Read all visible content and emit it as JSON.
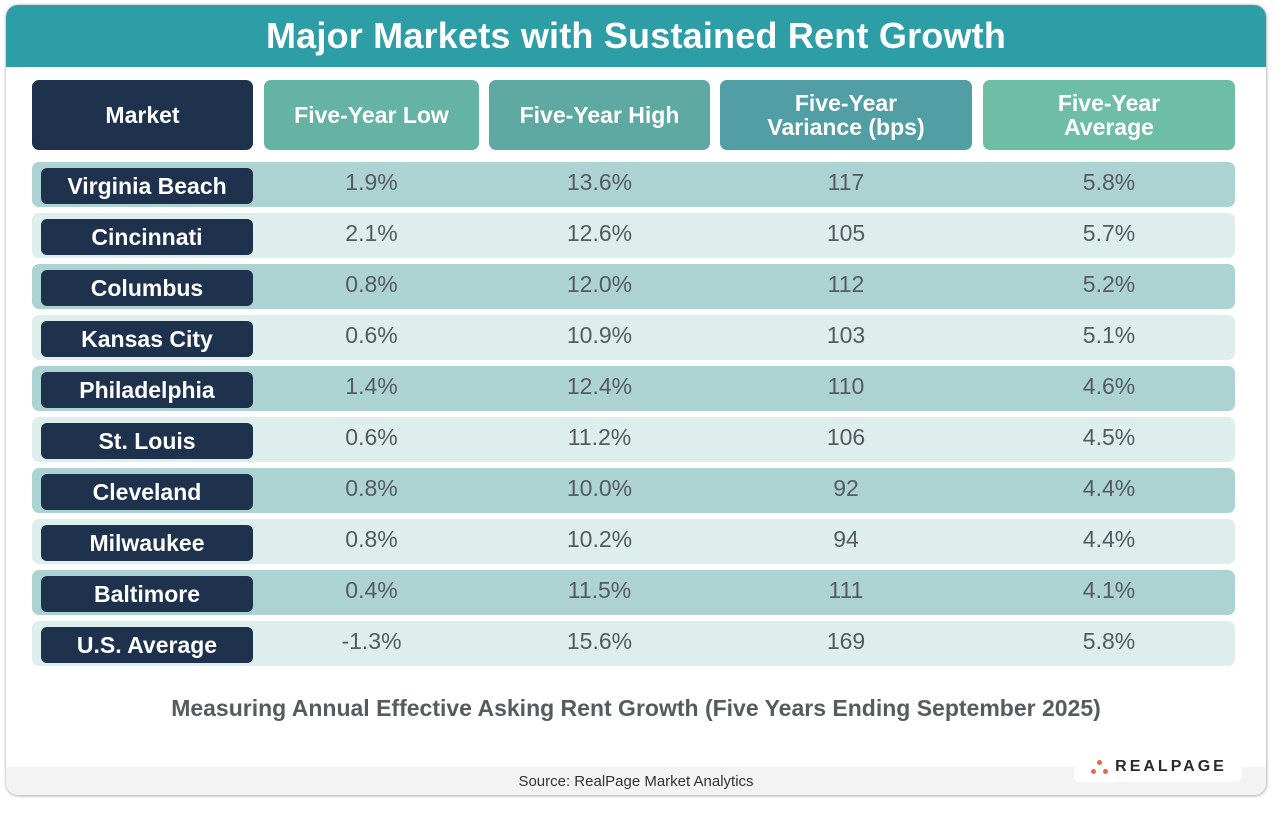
{
  "title": "Major Markets with Sustained Rent Growth",
  "headers": {
    "market": "Market",
    "low": "Five-Year Low",
    "high": "Five-Year High",
    "variance_line1": "Five-Year",
    "variance_line2": "Variance (bps)",
    "average_line1": "Five-Year",
    "average_line2": "Average"
  },
  "rows": [
    {
      "market": "Virginia Beach",
      "low": "1.9%",
      "high": "13.6%",
      "variance": "117",
      "average": "5.8%"
    },
    {
      "market": "Cincinnati",
      "low": "2.1%",
      "high": "12.6%",
      "variance": "105",
      "average": "5.7%"
    },
    {
      "market": "Columbus",
      "low": "0.8%",
      "high": "12.0%",
      "variance": "112",
      "average": "5.2%"
    },
    {
      "market": "Kansas City",
      "low": "0.6%",
      "high": "10.9%",
      "variance": "103",
      "average": "5.1%"
    },
    {
      "market": "Philadelphia",
      "low": "1.4%",
      "high": "12.4%",
      "variance": "110",
      "average": "4.6%"
    },
    {
      "market": "St. Louis",
      "low": "0.6%",
      "high": "11.2%",
      "variance": "106",
      "average": "4.5%"
    },
    {
      "market": "Cleveland",
      "low": "0.8%",
      "high": "10.0%",
      "variance": "92",
      "average": "4.4%"
    },
    {
      "market": "Milwaukee",
      "low": "0.8%",
      "high": "10.2%",
      "variance": "94",
      "average": "4.4%"
    },
    {
      "market": "Baltimore",
      "low": "0.4%",
      "high": "11.5%",
      "variance": "111",
      "average": "4.1%"
    },
    {
      "market": "U.S. Average",
      "low": "-1.3%",
      "high": "15.6%",
      "variance": "169",
      "average": "5.8%"
    }
  ],
  "subtitle": "Measuring Annual Effective Asking Rent Growth (Five Years Ending September 2025)",
  "source": "Source: RealPage Market Analytics",
  "logo": {
    "icon": "realpage-dots-icon",
    "text": "REALPAGE",
    "dot_color": "#e8674a"
  },
  "colors": {
    "title_bar": "#2e9ea6",
    "navy": "#1e314d",
    "row_dark": "#acd3d2",
    "row_light": "#deeeed"
  },
  "chart_data": {
    "type": "table",
    "title": "Major Markets with Sustained Rent Growth",
    "subtitle": "Measuring Annual Effective Asking Rent Growth (Five Years Ending September 2025)",
    "columns": [
      "Market",
      "Five-Year Low",
      "Five-Year High",
      "Five-Year Variance (bps)",
      "Five-Year Average"
    ],
    "rows": [
      [
        "Virginia Beach",
        1.9,
        13.6,
        117,
        5.8
      ],
      [
        "Cincinnati",
        2.1,
        12.6,
        105,
        5.7
      ],
      [
        "Columbus",
        0.8,
        12.0,
        112,
        5.2
      ],
      [
        "Kansas City",
        0.6,
        10.9,
        103,
        5.1
      ],
      [
        "Philadelphia",
        1.4,
        12.4,
        110,
        4.6
      ],
      [
        "St. Louis",
        0.6,
        11.2,
        106,
        4.5
      ],
      [
        "Cleveland",
        0.8,
        10.0,
        92,
        4.4
      ],
      [
        "Milwaukee",
        0.8,
        10.2,
        94,
        4.4
      ],
      [
        "Baltimore",
        0.4,
        11.5,
        111,
        4.1
      ],
      [
        "U.S. Average",
        -1.3,
        15.6,
        169,
        5.8
      ]
    ],
    "units": {
      "Five-Year Low": "%",
      "Five-Year High": "%",
      "Five-Year Variance (bps)": "bps",
      "Five-Year Average": "%"
    },
    "source": "Source: RealPage Market Analytics"
  }
}
